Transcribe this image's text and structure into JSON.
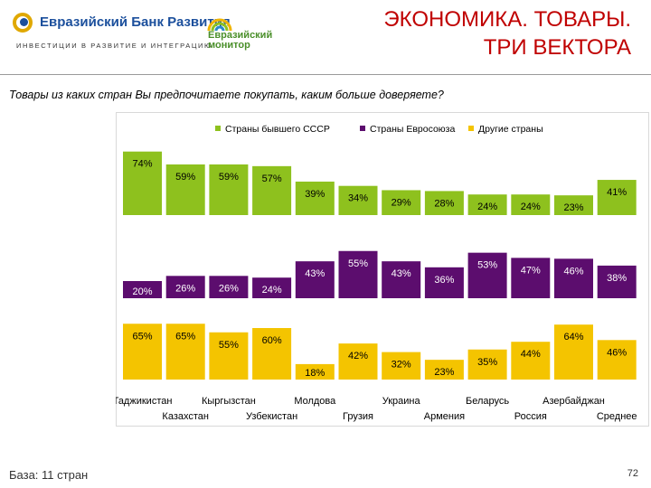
{
  "header": {
    "bank_name": "Евразийский Банк Развития",
    "bank_tagline": "ИНВЕСТИЦИИ В РАЗВИТИЕ И ИНТЕГРАЦИЮ",
    "monitor_line1": "Евразийский",
    "monitor_line2": "монитор",
    "title_line1": "ЭКОНОМИКА. ТОВАРЫ.",
    "title_line2": "ТРИ ВЕКТОРА"
  },
  "question": "Товары из каких стран Вы предпочитаете покупать, каким больше доверяете?",
  "footer": {
    "base": "База: 11 стран",
    "page": "72"
  },
  "colors": {
    "green": "#8ec11e",
    "purple": "#5c0d6e",
    "yellow": "#f4c400",
    "title_red": "#c00000"
  },
  "chart_data": {
    "type": "bar",
    "categories": [
      "Таджикистан",
      "Казахстан",
      "Кыргызстан",
      "Узбекистан",
      "Молдова",
      "Грузия",
      "Украина",
      "Армения",
      "Беларусь",
      "Россия",
      "Азербайджан",
      "Среднее"
    ],
    "series": [
      {
        "name": "Страны бывшего СССР",
        "values": [
          74,
          59,
          59,
          57,
          39,
          34,
          29,
          28,
          24,
          24,
          23,
          41
        ]
      },
      {
        "name": "Страны Евросоюза",
        "values": [
          20,
          26,
          26,
          24,
          43,
          55,
          43,
          36,
          53,
          47,
          46,
          38
        ]
      },
      {
        "name": "Другие страны",
        "values": [
          65,
          65,
          55,
          60,
          18,
          42,
          32,
          23,
          35,
          44,
          64,
          46
        ]
      }
    ],
    "value_suffix": "%",
    "legend_position": "top",
    "grid": false
  }
}
